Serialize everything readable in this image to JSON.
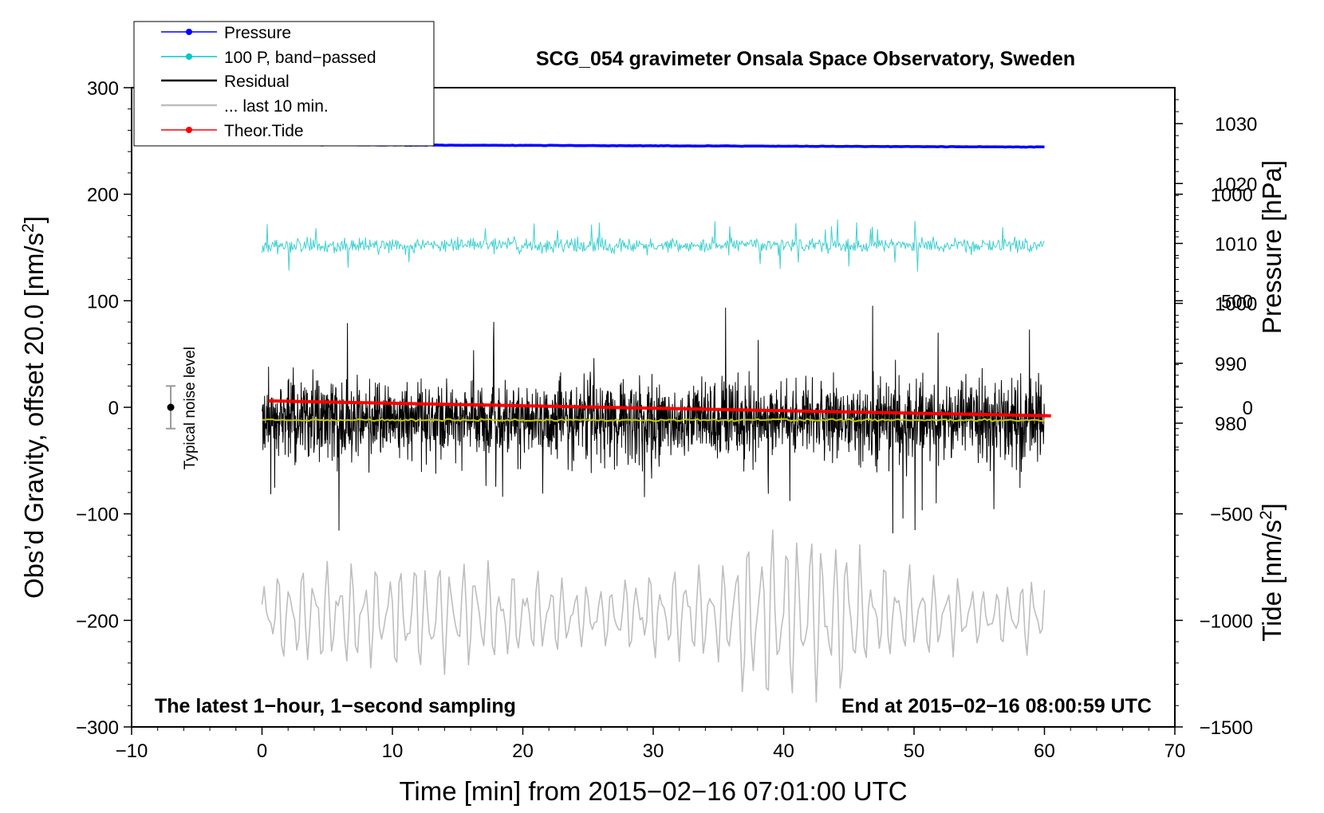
{
  "chart_data": {
    "type": "line",
    "title": "SCG_054 gravimeter Onsala Space Observatory, Sweden",
    "xlabel": "Time [min] from 2015−02−16 07:01:00 UTC",
    "ylabel": "Obs’d Gravity, offset 20.0 [nm/s²]",
    "y2label": "Pressure [hPa]",
    "y3label": "Tide [nm/s²]",
    "xlim": [
      -10,
      70
    ],
    "ylim": [
      -300,
      300
    ],
    "pressure_lim": [
      929.3,
      1036
    ],
    "tide_lim": [
      -1500,
      1500
    ],
    "x_ticks": [
      "−10",
      "0",
      "10",
      "20",
      "30",
      "40",
      "50",
      "60",
      "70"
    ],
    "y_ticks": [
      "300",
      "200",
      "100",
      "0",
      "−100",
      "−200",
      "−300"
    ],
    "pressure_ticks": [
      "1030",
      "1020",
      "1010",
      "1000",
      "990",
      "980"
    ],
    "tide_ticks": [
      "1000",
      "500",
      "0",
      "−500",
      "−1000",
      "−1500"
    ],
    "annotation_left": "The latest 1−hour, 1−second sampling",
    "annotation_right": "End at 2015−02−16 08:00:59 UTC",
    "noise_label": "Typical noise level",
    "noise_level": {
      "x": -7,
      "center": 0,
      "half_range": 20
    },
    "legend": [
      {
        "label": "Pressure",
        "color": "#0000ff",
        "marker": true
      },
      {
        "label": "100 P, band−passed",
        "color": "#00c8c8",
        "marker": true
      },
      {
        "label": "Residual",
        "color": "#000000",
        "marker": false
      },
      {
        "label": "... last 10 min.",
        "color": "#bebebe",
        "marker": false
      },
      {
        "label": "Theor.Tide",
        "color": "#ff0000",
        "marker": true
      }
    ],
    "series": [
      {
        "name": "Pressure",
        "axis": "pressure",
        "color": "#0000ff",
        "x_range": [
          0,
          60
        ],
        "start": 1026.5,
        "end": 1026.1
      },
      {
        "name": "100 P, band−passed",
        "axis": "gravity",
        "color": "#40d0d0",
        "x_range": [
          0,
          60
        ],
        "center": 152,
        "amplitude": 15
      },
      {
        "name": "Residual",
        "axis": "gravity",
        "color": "#000000",
        "x_range": [
          0,
          60
        ],
        "center": -12,
        "amplitude": 55
      },
      {
        "name": "Residual smoothed",
        "axis": "gravity",
        "color": "#c8c800",
        "x_range": [
          0,
          60
        ],
        "center": -12,
        "amplitude": 1
      },
      {
        "name": "... last 10 min.",
        "axis": "gravity",
        "color": "#bebebe",
        "x_range": [
          0,
          60
        ],
        "center": -195,
        "amplitude": 45
      },
      {
        "name": "Theor.Tide",
        "axis": "tide",
        "color": "#ff0000",
        "x_range": [
          0.5,
          60.5
        ],
        "start": 30,
        "end": -40
      }
    ]
  }
}
